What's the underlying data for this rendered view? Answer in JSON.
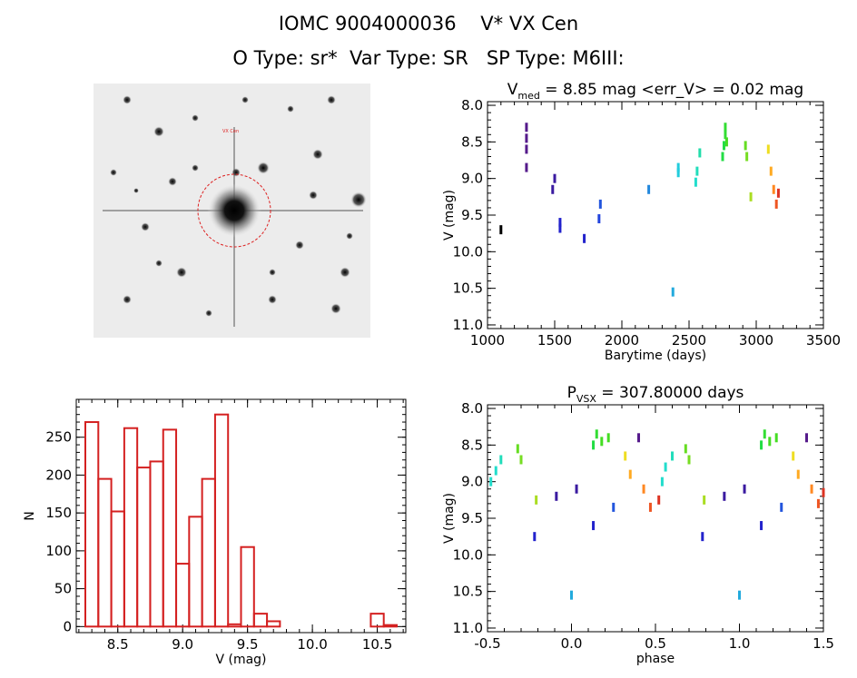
{
  "header": {
    "title_line1": "IOMC 9004000036    V* VX Cen",
    "title_line2": "O Type: sr*  Var Type: SR   SP Type: M6III:"
  },
  "colors": {
    "histogram": "#d42020",
    "frame": "#000000",
    "circle": "#dd2222"
  },
  "chart_data": [
    {
      "type": "image",
      "description_key": "finder-chart",
      "labels": {
        "target_label": "VX Cen"
      }
    },
    {
      "type": "scatter",
      "title_prefix": "V",
      "title_sub": "med",
      "title_rest": " = 8.85 mag <err_V> = 0.02 mag",
      "xlabel": "Barytime (days)",
      "ylabel": "V (mag)",
      "xlim": [
        1000,
        3500
      ],
      "ylim": [
        11.05,
        7.95
      ],
      "xticks": [
        1000,
        1500,
        2000,
        2500,
        3000,
        3500
      ],
      "yticks": [
        8.0,
        8.5,
        9.0,
        9.5,
        10.0,
        10.5,
        11.0
      ],
      "points": [
        {
          "x": 1100,
          "y": 9.7,
          "color": "#000000"
        },
        {
          "x": 1290,
          "y": 8.3,
          "color": "#551a8b"
        },
        {
          "x": 1290,
          "y": 8.45,
          "color": "#551a8b"
        },
        {
          "x": 1290,
          "y": 8.6,
          "color": "#551a8b"
        },
        {
          "x": 1290,
          "y": 8.85,
          "color": "#551a8b"
        },
        {
          "x": 1485,
          "y": 9.15,
          "color": "#3a1aa0"
        },
        {
          "x": 1500,
          "y": 9.0,
          "color": "#3a1aa0"
        },
        {
          "x": 1540,
          "y": 9.6,
          "color": "#2222cc"
        },
        {
          "x": 1540,
          "y": 9.68,
          "color": "#2222cc"
        },
        {
          "x": 1720,
          "y": 9.82,
          "color": "#2222cc"
        },
        {
          "x": 1830,
          "y": 9.55,
          "color": "#2244dd"
        },
        {
          "x": 1840,
          "y": 9.35,
          "color": "#2255dd"
        },
        {
          "x": 2200,
          "y": 9.15,
          "color": "#2288dd"
        },
        {
          "x": 2380,
          "y": 10.55,
          "color": "#22aadd"
        },
        {
          "x": 2420,
          "y": 8.92,
          "color": "#22ccdd"
        },
        {
          "x": 2420,
          "y": 8.85,
          "color": "#22ccdd"
        },
        {
          "x": 2550,
          "y": 9.05,
          "color": "#22ddcc"
        },
        {
          "x": 2560,
          "y": 8.9,
          "color": "#22ddbb"
        },
        {
          "x": 2580,
          "y": 8.65,
          "color": "#22ddaa"
        },
        {
          "x": 2750,
          "y": 8.7,
          "color": "#22dd44"
        },
        {
          "x": 2760,
          "y": 8.55,
          "color": "#22dd44"
        },
        {
          "x": 2770,
          "y": 8.4,
          "color": "#33dd33"
        },
        {
          "x": 2770,
          "y": 8.3,
          "color": "#33dd33"
        },
        {
          "x": 2780,
          "y": 8.5,
          "color": "#44dd22"
        },
        {
          "x": 2920,
          "y": 8.55,
          "color": "#66dd22"
        },
        {
          "x": 2930,
          "y": 8.7,
          "color": "#77dd22"
        },
        {
          "x": 2960,
          "y": 9.25,
          "color": "#aadd22"
        },
        {
          "x": 3090,
          "y": 8.6,
          "color": "#eedd22"
        },
        {
          "x": 3110,
          "y": 8.9,
          "color": "#ffaa22"
        },
        {
          "x": 3130,
          "y": 9.15,
          "color": "#ff8822"
        },
        {
          "x": 3150,
          "y": 9.35,
          "color": "#ee5522"
        },
        {
          "x": 3165,
          "y": 9.2,
          "color": "#dd3322"
        }
      ]
    },
    {
      "type": "bar",
      "xlabel": "V (mag)",
      "ylabel": "N",
      "xlim": [
        8.18,
        10.72
      ],
      "ylim": [
        -8,
        300
      ],
      "xticks": [
        8.5,
        9.0,
        9.5,
        10.0,
        10.5
      ],
      "yticks": [
        0,
        50,
        100,
        150,
        200,
        250
      ],
      "bin_width": 0.1,
      "bin_starts": [
        8.25,
        8.35,
        8.45,
        8.55,
        8.65,
        8.75,
        8.85,
        8.95,
        9.05,
        9.15,
        9.25,
        9.35,
        9.45,
        9.55,
        9.65,
        9.75,
        9.85,
        9.95,
        10.05,
        10.15,
        10.25,
        10.35,
        10.45,
        10.55
      ],
      "values": [
        270,
        195,
        152,
        262,
        210,
        218,
        260,
        83,
        145,
        195,
        280,
        3,
        105,
        17,
        7,
        0,
        0,
        0,
        0,
        0,
        0,
        0,
        17,
        2
      ]
    },
    {
      "type": "scatter",
      "title_prefix": "P",
      "title_sub": "VSX",
      "title_rest": " = 307.80000 days",
      "xlabel": "phase",
      "ylabel": "V (mag)",
      "xlim": [
        -0.5,
        1.5
      ],
      "ylim": [
        11.05,
        7.95
      ],
      "xticks": [
        -0.5,
        0.0,
        0.5,
        1.0,
        1.5
      ],
      "yticks": [
        8.0,
        8.5,
        9.0,
        9.5,
        10.0,
        10.5,
        11.0
      ],
      "points": [
        {
          "x": -0.48,
          "y": 9.0,
          "color": "#22ddcc"
        },
        {
          "x": -0.45,
          "y": 8.85,
          "color": "#22ddcc"
        },
        {
          "x": -0.42,
          "y": 8.7,
          "color": "#22ddbb"
        },
        {
          "x": -0.32,
          "y": 8.55,
          "color": "#66dd22"
        },
        {
          "x": -0.3,
          "y": 8.7,
          "color": "#77dd22"
        },
        {
          "x": -0.21,
          "y": 9.25,
          "color": "#aadd22"
        },
        {
          "x": -0.22,
          "y": 9.75,
          "color": "#2222cc"
        },
        {
          "x": -0.09,
          "y": 9.2,
          "color": "#3a1aa0"
        },
        {
          "x": 0.0,
          "y": 10.55,
          "color": "#22aadd"
        },
        {
          "x": 0.03,
          "y": 9.1,
          "color": "#3a1aa0"
        },
        {
          "x": 0.13,
          "y": 9.6,
          "color": "#2222cc"
        },
        {
          "x": 0.13,
          "y": 8.5,
          "color": "#22dd44"
        },
        {
          "x": 0.15,
          "y": 8.35,
          "color": "#33dd33"
        },
        {
          "x": 0.18,
          "y": 8.45,
          "color": "#44dd22"
        },
        {
          "x": 0.22,
          "y": 8.4,
          "color": "#44dd22"
        },
        {
          "x": 0.25,
          "y": 9.35,
          "color": "#2255dd"
        },
        {
          "x": 0.32,
          "y": 8.65,
          "color": "#eedd22"
        },
        {
          "x": 0.35,
          "y": 8.9,
          "color": "#ffaa22"
        },
        {
          "x": 0.4,
          "y": 8.4,
          "color": "#551a8b"
        },
        {
          "x": 0.43,
          "y": 9.1,
          "color": "#ff8822"
        },
        {
          "x": 0.47,
          "y": 9.35,
          "color": "#ee5522"
        },
        {
          "x": 0.52,
          "y": 9.25,
          "color": "#dd3322"
        },
        {
          "x": 0.54,
          "y": 9.0,
          "color": "#22ddcc"
        },
        {
          "x": 0.56,
          "y": 8.8,
          "color": "#22ddcc"
        },
        {
          "x": 0.6,
          "y": 8.65,
          "color": "#22ddbb"
        },
        {
          "x": 0.68,
          "y": 8.55,
          "color": "#66dd22"
        },
        {
          "x": 0.7,
          "y": 8.7,
          "color": "#77dd22"
        },
        {
          "x": 0.79,
          "y": 9.25,
          "color": "#aadd22"
        },
        {
          "x": 0.78,
          "y": 9.75,
          "color": "#2222cc"
        },
        {
          "x": 0.91,
          "y": 9.2,
          "color": "#3a1aa0"
        },
        {
          "x": 1.0,
          "y": 10.55,
          "color": "#22aadd"
        },
        {
          "x": 1.03,
          "y": 9.1,
          "color": "#3a1aa0"
        },
        {
          "x": 1.13,
          "y": 9.6,
          "color": "#2222cc"
        },
        {
          "x": 1.13,
          "y": 8.5,
          "color": "#22dd44"
        },
        {
          "x": 1.15,
          "y": 8.35,
          "color": "#33dd33"
        },
        {
          "x": 1.18,
          "y": 8.45,
          "color": "#44dd22"
        },
        {
          "x": 1.22,
          "y": 8.4,
          "color": "#44dd22"
        },
        {
          "x": 1.25,
          "y": 9.35,
          "color": "#2255dd"
        },
        {
          "x": 1.32,
          "y": 8.65,
          "color": "#eedd22"
        },
        {
          "x": 1.35,
          "y": 8.9,
          "color": "#ffaa22"
        },
        {
          "x": 1.4,
          "y": 8.4,
          "color": "#551a8b"
        },
        {
          "x": 1.43,
          "y": 9.1,
          "color": "#ff8822"
        },
        {
          "x": 1.47,
          "y": 9.3,
          "color": "#ee5522"
        },
        {
          "x": 1.5,
          "y": 9.15,
          "color": "#dd3322"
        }
      ]
    }
  ]
}
